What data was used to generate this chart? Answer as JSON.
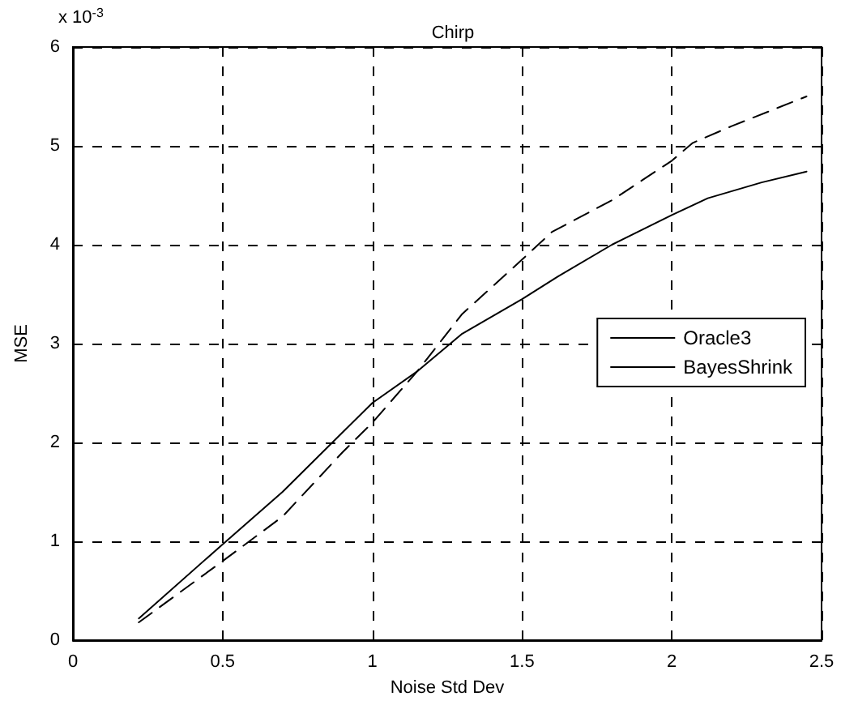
{
  "chart_data": {
    "type": "line",
    "title": "Chirp",
    "xlabel": "Noise Std Dev",
    "ylabel": "MSE",
    "annotations": [
      "x 10$^{-3}$"
    ],
    "xlim": [
      0,
      2.5
    ],
    "xticks": [
      0,
      0.5,
      1,
      1.5,
      2,
      2.5
    ],
    "ylim": [
      0,
      6
    ],
    "yticks": [
      0,
      1,
      2,
      3,
      4,
      5,
      6
    ],
    "grid": true,
    "legend": "right",
    "marker": "none",
    "series": [
      {
        "name": "Oracle3",
        "color": "#000000",
        "line_style": "solid",
        "x": [
          0.22,
          0.5,
          0.7,
          0.9,
          1.0,
          1.15,
          1.3,
          1.5,
          1.62,
          1.8,
          2.0,
          2.12,
          2.3,
          2.45
        ],
        "values": [
          0.22,
          0.97,
          1.5,
          2.1,
          2.4,
          2.72,
          3.1,
          3.45,
          3.68,
          4.0,
          4.3,
          4.47,
          4.63,
          4.74
        ]
      },
      {
        "name": "BayesShrink",
        "color": "#000000",
        "line_style": "dashed",
        "x": [
          0.22,
          0.5,
          0.7,
          0.9,
          1.0,
          1.15,
          1.3,
          1.5,
          1.6,
          1.8,
          2.0,
          2.07,
          2.2,
          2.35,
          2.45
        ],
        "values": [
          0.18,
          0.8,
          1.25,
          1.9,
          2.2,
          2.72,
          3.3,
          3.85,
          4.13,
          4.45,
          4.85,
          5.03,
          5.2,
          5.38,
          5.5
        ]
      }
    ]
  }
}
